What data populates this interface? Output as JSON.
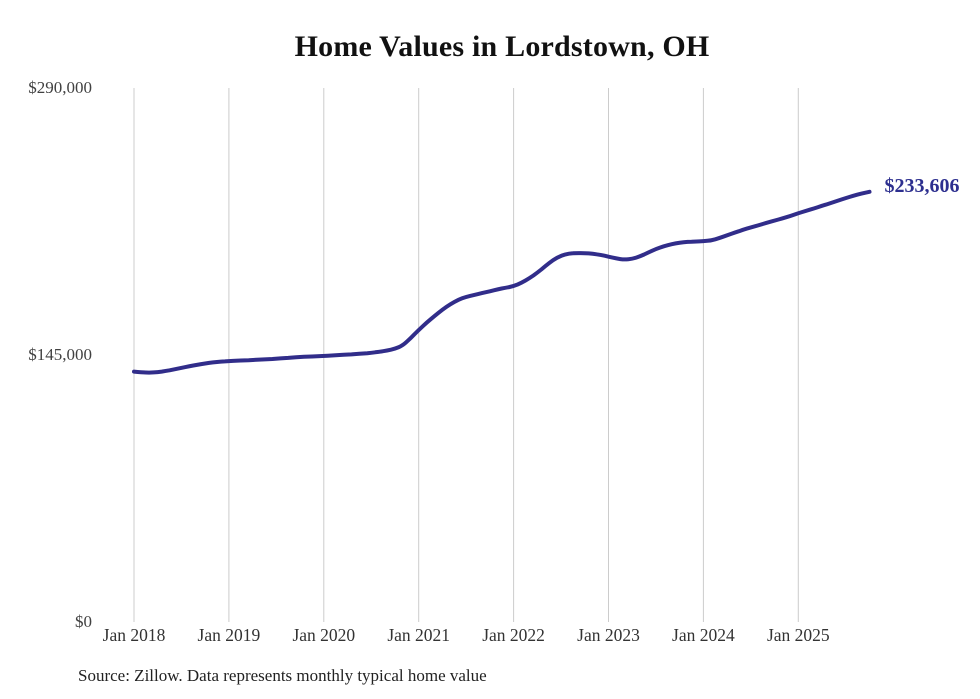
{
  "chart": {
    "title": "Home Values in Lordstown, OH",
    "end_label": "$233,606",
    "source": "Source: Zillow. Data represents monthly typical home value",
    "colors": {
      "line": "#312d8a",
      "end_label": "#2d2f8f",
      "grid": "#cccccc",
      "axis_text": "#3b3b3b",
      "title": "#111111"
    }
  },
  "chart_data": {
    "type": "line",
    "title": "Home Values in Lordstown, OH",
    "xlabel": "",
    "ylabel": "",
    "x_tick_labels": [
      "Jan 2018",
      "Jan 2019",
      "Jan 2020",
      "Jan 2021",
      "Jan 2022",
      "Jan 2023",
      "Jan 2024",
      "Jan 2025"
    ],
    "y_ticks": [
      {
        "label": "$0",
        "value": 0
      },
      {
        "label": "$145,000",
        "value": 145000
      },
      {
        "label": "$290,000",
        "value": 290000
      }
    ],
    "ylim": [
      0,
      290000
    ],
    "grid": "vertical",
    "legend": "none",
    "annotation": {
      "text": "$233,606",
      "position": "line-end"
    },
    "source_note": "Source: Zillow. Data represents monthly typical home value",
    "series": [
      {
        "name": "Monthly typical home value",
        "start": "Jan 2018",
        "frequency": "monthly",
        "end": "Oct 2025",
        "final_value": 233606,
        "values": [
          136000,
          135600,
          135400,
          135700,
          136300,
          137100,
          138000,
          138900,
          139700,
          140400,
          141000,
          141400,
          141700,
          141900,
          142100,
          142300,
          142500,
          142700,
          143000,
          143300,
          143600,
          143900,
          144100,
          144300,
          144500,
          144700,
          145000,
          145200,
          145500,
          145800,
          146200,
          146700,
          147400,
          148400,
          150200,
          154200,
          158600,
          162600,
          166200,
          169600,
          172600,
          175000,
          176600,
          177600,
          178600,
          179600,
          180700,
          181500,
          182400,
          184200,
          186700,
          189700,
          193200,
          196600,
          199000,
          200100,
          200400,
          200300,
          200000,
          199400,
          198400,
          197400,
          196800,
          197200,
          198600,
          200600,
          202600,
          204100,
          205200,
          206000,
          206400,
          206600,
          206800,
          207200,
          208500,
          210000,
          211500,
          213000,
          214300,
          215500,
          216800,
          218000,
          219200,
          220500,
          222000,
          223300,
          224600,
          226000,
          227400,
          228800,
          230200,
          231500,
          232700,
          233606
        ]
      }
    ]
  }
}
